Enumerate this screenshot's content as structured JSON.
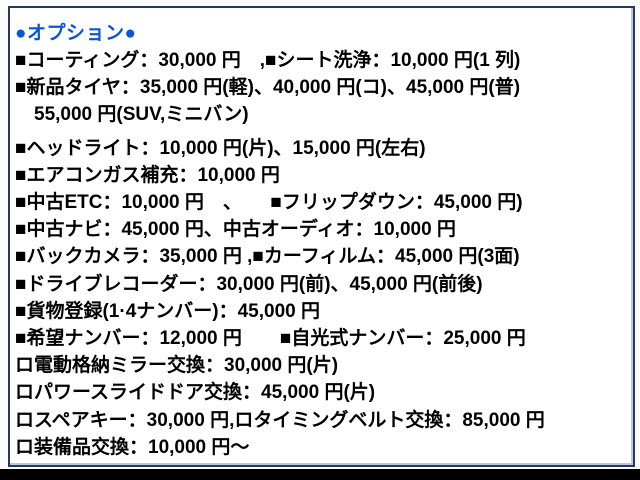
{
  "colors": {
    "title": "#0a54dc",
    "body_text": "#000000",
    "page_background": "#fdfdfd",
    "frame_border": "#2a3757",
    "frame_inner_highlight": "#b9c7e3",
    "bottom_bar": "#000000"
  },
  "header": {
    "title": "●オプション●"
  },
  "options": {
    "lines": [
      {
        "text": "■コーティング：30,000 円　,■シート洗浄：10,000 円(1 列)"
      },
      {
        "text": "■新品タイヤ：35,000 円(軽)、40,000 円(コ)、45,000 円(普)"
      },
      {
        "text": "　55,000 円(SUV,ミニバン)",
        "gap_after": true
      },
      {
        "text": "■ヘッドライト：10,000 円(片)、15,000 円(左右)"
      },
      {
        "text": "■エアコンガス補充：10,000 円"
      },
      {
        "text": "■中古ETC：10,000 円　、　　■フリップダウン：45,000 円)"
      },
      {
        "text": "■中古ナビ：45,000 円、中古オーディオ：10,000 円"
      },
      {
        "text": "■バックカメラ：35,000 円 ,■カーフィルム：45,000 円(3面)"
      },
      {
        "text": "■ドライブレコーダー：30,000 円(前)、45,000 円(前後)"
      },
      {
        "text": "■貨物登録(1·4ナンバー)：45,000 円"
      },
      {
        "text": "■希望ナンバー：12,000 円　　■自光式ナンバー：25,000 円"
      },
      {
        "text": "ロ電動格納ミラー交換：30,000 円(片)"
      },
      {
        "text": "ロパワースライドドア交換：45,000 円(片)"
      },
      {
        "text": "ロスペアキー：30,000 円,ロタイミングベルト交換：85,000 円"
      },
      {
        "text": "ロ装備品交換：10,000 円～"
      }
    ]
  }
}
